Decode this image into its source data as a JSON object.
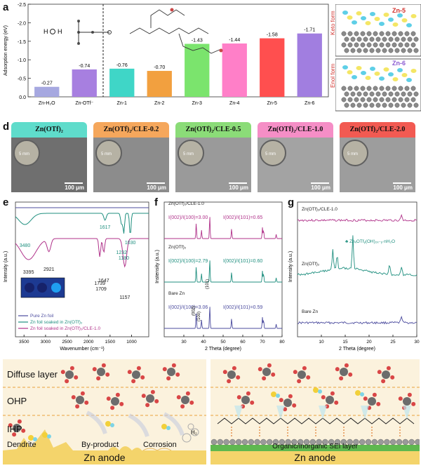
{
  "panels": {
    "a": "a",
    "b": "b",
    "c": "c",
    "d": "d",
    "e": "e",
    "f": "f",
    "g": "g",
    "h": "h",
    "i": "i"
  },
  "chart_a": {
    "type": "bar",
    "ylabel": "Adsorption energy (eV)",
    "yticks": [
      "-2.5",
      "-2.0",
      "-1.5",
      "-1.0",
      "-0.5",
      "0.0"
    ],
    "categories": [
      "Zn-H₂O",
      "Zn-OTf⁻",
      "Zn-1",
      "Zn-2",
      "Zn-3",
      "Zn-4",
      "Zn-5",
      "Zn-6"
    ],
    "values": [
      -0.27,
      -0.74,
      -0.76,
      -0.7,
      -1.43,
      -1.44,
      -1.58,
      -1.71
    ],
    "value_labels": [
      "-0.27",
      "-0.74",
      "-0.76",
      "-0.70",
      "-1.43",
      "-1.44",
      "-1.58",
      "-1.71"
    ],
    "colors": [
      "#a6a8e0",
      "#a77fe0",
      "#3fd6c7",
      "#f2a03f",
      "#7be46d",
      "#ff7fc8",
      "#ff4f4f",
      "#a17ee0"
    ],
    "ylim": [
      0,
      -2.5
    ]
  },
  "panel_b": {
    "tag": "Zn-5",
    "side": "Keto form"
  },
  "panel_c": {
    "tag": "Zn-6",
    "side": "Enol form"
  },
  "panel_d": {
    "items": [
      {
        "title": "Zn(OTf)₂",
        "color": "#5fdccb"
      },
      {
        "title": "Zn(OTf)₂/CLE-0.2",
        "color": "#f5a75c"
      },
      {
        "title": "Zn(OTf)₂/CLE-0.5",
        "color": "#8bdc78"
      },
      {
        "title": "Zn(OTf)₂/CLE-1.0",
        "color": "#f58ec6"
      },
      {
        "title": "Zn(OTf)₂/CLE-2.0",
        "color": "#f25a52"
      }
    ],
    "scale": "100 μm",
    "inset_scale": "5 mm"
  },
  "chart_e": {
    "type": "line",
    "xlabel": "Wavenumber (cm⁻¹)",
    "ylabel": "Intensity (a.u.)",
    "xticks": [
      "3500",
      "3000",
      "2500",
      "2000",
      "1500",
      "1000"
    ],
    "peaks_teal": [
      "3480",
      "1617",
      "1232",
      "1180",
      "1030"
    ],
    "peaks_red": [
      "3395",
      "2921",
      "1739",
      "1709",
      "1647",
      "1157"
    ],
    "legend": [
      "Pure Zn foil",
      "Zn foil soaked in Zn(OTf)₂",
      "Zn foil soaked in Zn(OTf)₂/CLE-1.0"
    ],
    "colors": [
      "#4b4b9e",
      "#1f8f7f",
      "#b0328a"
    ]
  },
  "chart_f": {
    "type": "line",
    "xlabel": "2 Theta (degree)",
    "ylabel": "Instensity (a.u.)",
    "xticks": [
      "30",
      "40",
      "50",
      "60",
      "70",
      "80"
    ],
    "series": [
      {
        "name": "Zn(OTf)₂/CLE-1.0",
        "ratio1": "I(002)/I(100)=3.00",
        "ratio2": "I(002)/I(101)=0.65",
        "color": "#b0328a"
      },
      {
        "name": "Zn(OTf)₂",
        "ratio1": "I(002)/I(100)=2.79",
        "ratio2": "I(002)/I(101)=0.60",
        "color": "#1f8f7f"
      },
      {
        "name": "Bare Zn",
        "ratio1": "I(002)/I(100)=3.06",
        "ratio2": "I(002)/I(101)=0.59",
        "color": "#4b4b9e"
      }
    ],
    "planes": [
      "(002)",
      "(100)",
      "(101)"
    ]
  },
  "chart_g": {
    "type": "line",
    "xlabel": "2 Theta (degree)",
    "ylabel": "Intensity (a.u.)",
    "xticks": [
      "10",
      "15",
      "20",
      "25",
      "30"
    ],
    "series": [
      "Zn(OTf)₂/CLE-1.0",
      "Zn(OTf)₂",
      "Bare Zn"
    ],
    "annotation": "ZnₓOTfᵧ(OH)₂ₓ₋ᵧ·nH₂O"
  },
  "panel_h": {
    "layers": [
      "Diffuse layer",
      "OHP",
      "IHP"
    ],
    "labels": [
      "Dendrite",
      "By-product",
      "Corrosion",
      "H₂"
    ],
    "anode": "Zn anode"
  },
  "panel_i": {
    "sei": "Organic/inorganic SEI layer",
    "anode": "Zn anode"
  }
}
